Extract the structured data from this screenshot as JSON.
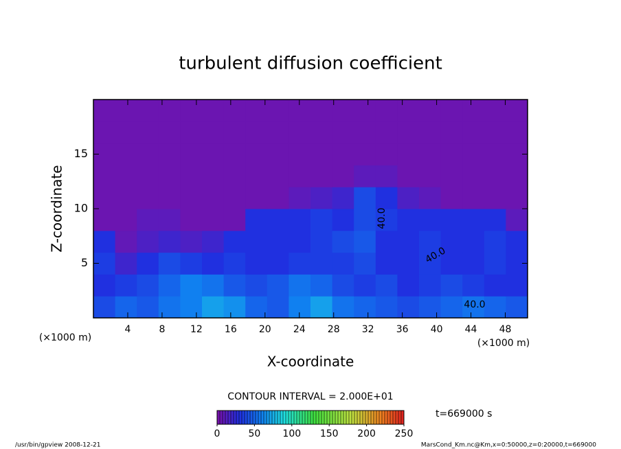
{
  "chart_data": {
    "type": "heatmap",
    "title": "turbulent diffusion coefficient",
    "x_label": "X-coordinate",
    "y_label": "Z-coordinate",
    "x_unit_label": "(×1000 m)",
    "y_unit_label": "(×1000 m)",
    "xlim": [
      0,
      50.6
    ],
    "ylim": [
      0,
      20
    ],
    "xticks": [
      4,
      8,
      12,
      16,
      20,
      24,
      28,
      32,
      36,
      40,
      44,
      48
    ],
    "yticks": [
      5,
      10,
      15
    ],
    "values": [
      [
        40,
        50,
        45,
        55,
        60,
        70,
        65,
        50,
        45,
        60,
        70,
        55,
        50,
        45,
        40,
        45,
        50,
        55,
        50,
        45
      ],
      [
        30,
        35,
        40,
        50,
        60,
        55,
        45,
        40,
        45,
        55,
        50,
        40,
        35,
        40,
        30,
        35,
        40,
        35,
        30,
        30
      ],
      [
        35,
        20,
        30,
        40,
        35,
        30,
        35,
        30,
        30,
        35,
        35,
        35,
        40,
        30,
        30,
        35,
        30,
        30,
        35,
        30
      ],
      [
        30,
        8,
        15,
        20,
        15,
        20,
        30,
        30,
        30,
        30,
        35,
        40,
        45,
        30,
        30,
        35,
        30,
        30,
        35,
        30
      ],
      [
        5,
        5,
        10,
        10,
        5,
        5,
        5,
        30,
        30,
        30,
        35,
        30,
        40,
        35,
        30,
        30,
        30,
        30,
        30,
        10
      ],
      [
        5,
        5,
        5,
        5,
        5,
        5,
        5,
        5,
        5,
        10,
        15,
        20,
        40,
        30,
        15,
        10,
        5,
        5,
        5,
        5
      ],
      [
        5,
        5,
        5,
        5,
        5,
        5,
        5,
        5,
        5,
        5,
        5,
        5,
        10,
        10,
        5,
        5,
        5,
        5,
        5,
        5
      ],
      [
        5,
        5,
        5,
        5,
        5,
        5,
        5,
        5,
        5,
        5,
        5,
        5,
        5,
        5,
        5,
        5,
        5,
        5,
        5,
        5
      ],
      [
        5,
        5,
        5,
        5,
        5,
        5,
        5,
        5,
        5,
        5,
        5,
        5,
        5,
        5,
        5,
        5,
        5,
        5,
        5,
        5
      ],
      [
        5,
        5,
        5,
        5,
        5,
        5,
        5,
        5,
        5,
        5,
        5,
        5,
        5,
        5,
        5,
        5,
        5,
        5,
        5,
        5
      ]
    ],
    "colormap": [
      {
        "value": 0,
        "color": "#7a10a8"
      },
      {
        "value": 30,
        "color": "#2030e0"
      },
      {
        "value": 60,
        "color": "#1080f0"
      },
      {
        "value": 90,
        "color": "#20e0e0"
      },
      {
        "value": 130,
        "color": "#40e040"
      },
      {
        "value": 180,
        "color": "#c0e040"
      },
      {
        "value": 220,
        "color": "#f08020"
      },
      {
        "value": 250,
        "color": "#e02020"
      }
    ],
    "contour_labels": [
      "40.0",
      "40.0",
      "40.0"
    ],
    "contour_interval": "CONTOUR INTERVAL = 2.000E+01",
    "colorbar": {
      "lim": [
        0,
        250
      ],
      "ticks": [
        0,
        50,
        100,
        150,
        200,
        250
      ]
    },
    "time_label": "t=669000 s",
    "footer_left": "/usr/bin/gpview   2008-12-21",
    "footer_right": "MarsCond_Km.nc@Km,x=0:50000,z=0:20000,t=669000"
  }
}
